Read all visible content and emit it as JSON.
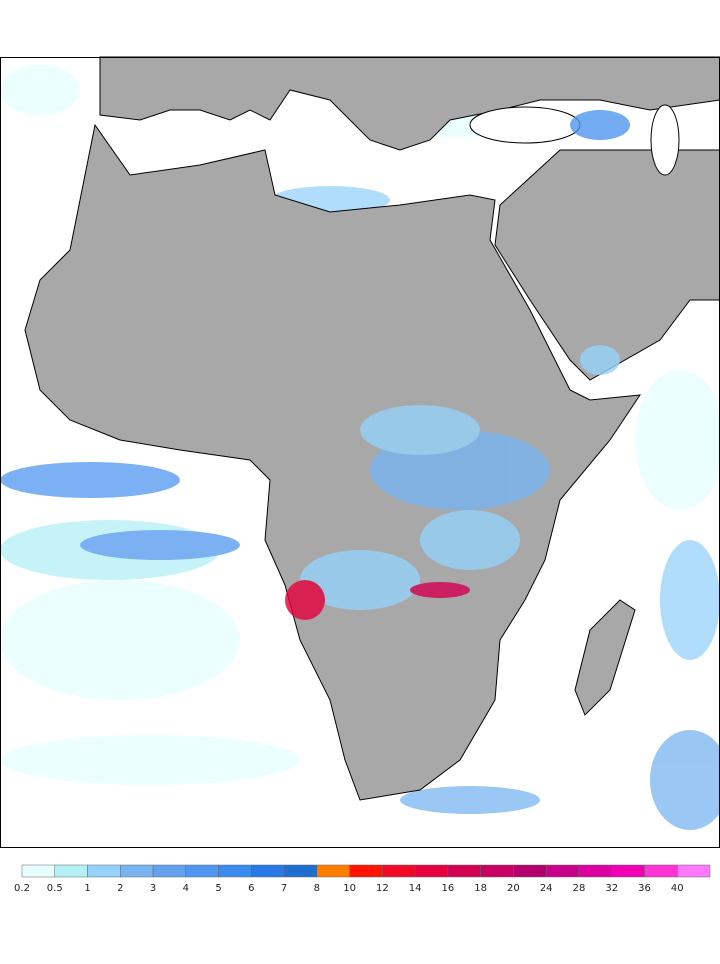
{
  "colorbar": {
    "levels": [
      0.2,
      0.5,
      1,
      2,
      3,
      4,
      5,
      6,
      7,
      8,
      10,
      12,
      14,
      16,
      18,
      20,
      24,
      28,
      32,
      36,
      40
    ],
    "colors": [
      "#e6ffff",
      "#b4f0f5",
      "#96d2fa",
      "#78b4f0",
      "#64a0f0",
      "#5096f0",
      "#3c8cf0",
      "#2878e6",
      "#1e6ed2",
      "#ff7d00",
      "#ff1400",
      "#f00a28",
      "#e6003c",
      "#d20050",
      "#c80064",
      "#b4006e",
      "#c8008c",
      "#dc00a0",
      "#f000b4",
      "#ff32d2",
      "#ff78ff"
    ]
  }
}
